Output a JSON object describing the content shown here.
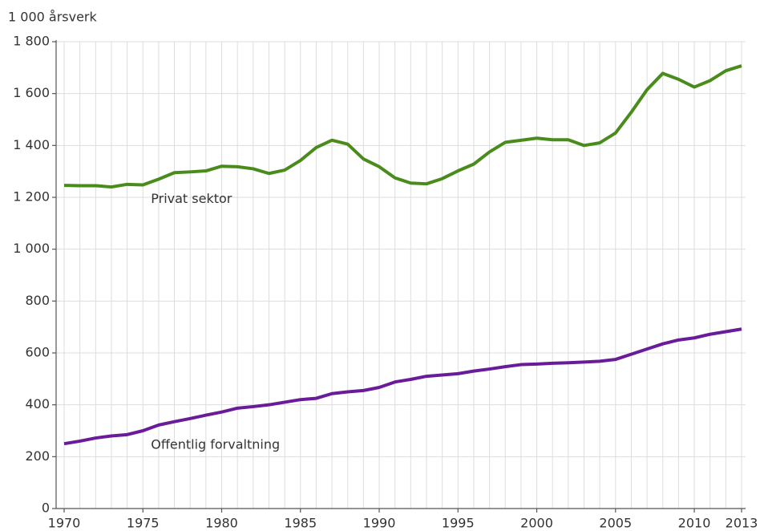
{
  "chart_data": {
    "type": "line",
    "y_axis_label": "1 000 årsverk",
    "x": [
      1970,
      1971,
      1972,
      1973,
      1974,
      1975,
      1976,
      1977,
      1978,
      1979,
      1980,
      1981,
      1982,
      1983,
      1984,
      1985,
      1986,
      1987,
      1988,
      1989,
      1990,
      1991,
      1992,
      1993,
      1994,
      1995,
      1996,
      1997,
      1998,
      1999,
      2000,
      2001,
      2002,
      2003,
      2004,
      2005,
      2006,
      2007,
      2008,
      2009,
      2010,
      2011,
      2012,
      2013
    ],
    "series": [
      {
        "name": "Privat sektor",
        "color": "#4a8c1c",
        "values": [
          1246,
          1245,
          1245,
          1240,
          1250,
          1248,
          1270,
          1295,
          1298,
          1302,
          1320,
          1318,
          1310,
          1292,
          1305,
          1342,
          1392,
          1420,
          1405,
          1348,
          1318,
          1275,
          1255,
          1252,
          1272,
          1302,
          1328,
          1375,
          1412,
          1420,
          1428,
          1422,
          1422,
          1400,
          1410,
          1448,
          1528,
          1615,
          1678,
          1655,
          1625,
          1650,
          1688,
          1707
        ]
      },
      {
        "name": "Offentlig forvaltning",
        "color": "#6a1b9a",
        "values": [
          250,
          260,
          272,
          280,
          285,
          300,
          322,
          335,
          347,
          360,
          372,
          387,
          393,
          400,
          410,
          420,
          425,
          443,
          450,
          455,
          467,
          488,
          498,
          510,
          515,
          520,
          530,
          538,
          547,
          555,
          557,
          560,
          562,
          565,
          568,
          575,
          595,
          615,
          635,
          650,
          658,
          672,
          682,
          692
        ]
      }
    ],
    "xlim": [
      1970,
      2013
    ],
    "xticks": [
      1970,
      1975,
      1980,
      1985,
      1990,
      1995,
      2000,
      2005,
      2010,
      2013
    ],
    "ylim": [
      0,
      1800
    ],
    "yticks": [
      0,
      200,
      400,
      600,
      800,
      {
        "value": 1000,
        "label": "1 000"
      },
      {
        "value": 1200,
        "label": "1 200"
      },
      {
        "value": 1400,
        "label": "1 400"
      },
      {
        "value": 1600,
        "label": "1 600"
      },
      {
        "value": 1800,
        "label": "1 800"
      }
    ],
    "grid": true
  }
}
